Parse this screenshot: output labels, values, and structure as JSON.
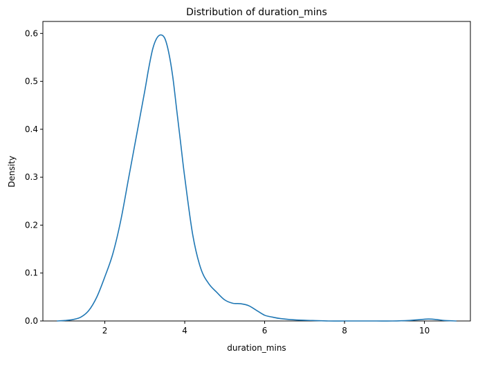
{
  "chart_data": {
    "type": "line",
    "title": "Distribution of duration_mins",
    "xlabel": "duration_mins",
    "ylabel": "Density",
    "xlim": [
      0.45,
      11.15
    ],
    "ylim": [
      0.0,
      0.625
    ],
    "xticks": [
      2,
      4,
      6,
      8,
      10
    ],
    "xtick_labels": [
      "2",
      "4",
      "6",
      "8",
      "10"
    ],
    "yticks": [
      0.0,
      0.1,
      0.2,
      0.3,
      0.4,
      0.5,
      0.6
    ],
    "ytick_labels": [
      "0.0",
      "0.1",
      "0.2",
      "0.3",
      "0.4",
      "0.5",
      "0.6"
    ],
    "grid": false,
    "legend": null,
    "line_color": "#1f77b4",
    "series": [
      {
        "x": [
          0.8,
          1.0,
          1.2,
          1.4,
          1.6,
          1.8,
          2.0,
          2.2,
          2.4,
          2.6,
          2.8,
          3.0,
          3.1,
          3.2,
          3.3,
          3.4,
          3.5,
          3.6,
          3.7,
          3.8,
          3.9,
          4.0,
          4.2,
          4.4,
          4.6,
          4.8,
          5.0,
          5.2,
          5.4,
          5.6,
          5.8,
          6.0,
          6.2,
          6.4,
          6.8,
          7.2,
          7.6,
          8.0,
          8.4,
          8.8,
          9.2,
          9.6,
          9.9,
          10.1,
          10.3,
          10.5,
          10.8
        ],
        "y": [
          0.0,
          0.001,
          0.003,
          0.008,
          0.022,
          0.05,
          0.092,
          0.14,
          0.21,
          0.3,
          0.39,
          0.48,
          0.528,
          0.568,
          0.59,
          0.597,
          0.59,
          0.56,
          0.51,
          0.44,
          0.37,
          0.3,
          0.18,
          0.11,
          0.078,
          0.06,
          0.044,
          0.037,
          0.036,
          0.032,
          0.022,
          0.012,
          0.008,
          0.005,
          0.002,
          0.001,
          0.0,
          0.0,
          0.0,
          0.0,
          0.0,
          0.001,
          0.003,
          0.004,
          0.003,
          0.001,
          0.0
        ]
      }
    ]
  }
}
